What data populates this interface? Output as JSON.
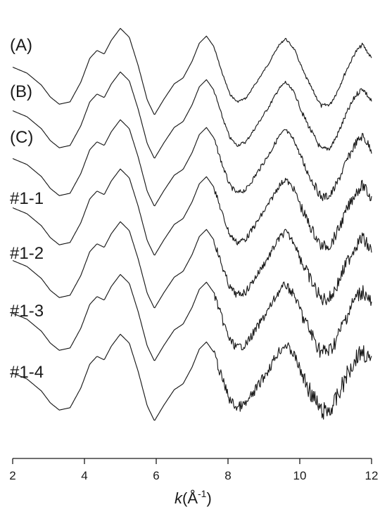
{
  "chart_data": {
    "type": "line",
    "title": "",
    "xlabel_prefix": "k",
    "xlabel_unit": "(Å",
    "xlabel_sup": "-1",
    "xlabel_close": ")",
    "ylabel": "",
    "xlim": [
      2,
      12
    ],
    "xticks": [
      "2",
      "4",
      "6",
      "8",
      "10",
      "12"
    ],
    "grid": false,
    "legend": "none",
    "series": [
      {
        "name": "(A)"
      },
      {
        "name": "(B)"
      },
      {
        "name": "(C)"
      },
      {
        "name": "#1-1"
      },
      {
        "name": "#1-2"
      },
      {
        "name": "#1-3"
      },
      {
        "name": "#1-4"
      }
    ]
  }
}
